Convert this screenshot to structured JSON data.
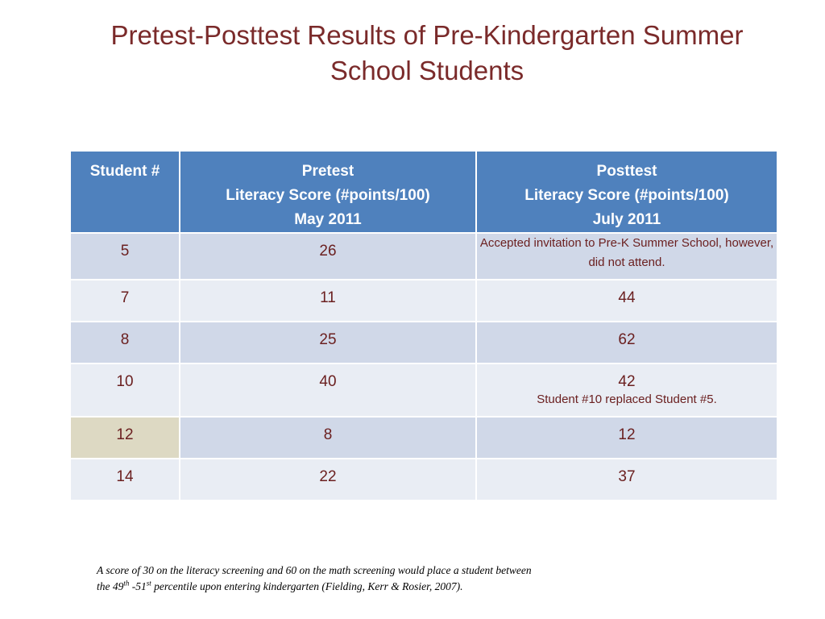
{
  "title": {
    "line1": "Pretest-Posttest Results of Pre-Kindergarten Summer",
    "line2": "School Students"
  },
  "table": {
    "headers": {
      "student": "Student #",
      "pretest": [
        "Pretest",
        "Literacy Score (#points/100)",
        "May 2011"
      ],
      "posttest": [
        "Posttest",
        "Literacy Score  (#points/100)",
        "July 2011"
      ]
    },
    "rows": [
      {
        "student": "5",
        "pretest": "26",
        "posttest": "",
        "posttest_note": "Accepted invitation to Pre-K Summer School, however, did not attend."
      },
      {
        "student": "7",
        "pretest": "11",
        "posttest": "44",
        "posttest_note": ""
      },
      {
        "student": "8",
        "pretest": "25",
        "posttest": "62",
        "posttest_note": ""
      },
      {
        "student": "10",
        "pretest": "40",
        "posttest": "42",
        "posttest_note": "Student #10 replaced Student #5."
      },
      {
        "student": "12",
        "pretest": "8",
        "posttest": "12",
        "posttest_note": ""
      },
      {
        "student": "14",
        "pretest": "22",
        "posttest": "37",
        "posttest_note": ""
      }
    ]
  },
  "footnote": {
    "line1": "A score of 30 on the literacy screening and 60 on the math screening would place a student between",
    "line2_a": "the 49",
    "line2_sup1": "th",
    "line2_b": " -51",
    "line2_sup2": "st",
    "line2_c": " percentile upon entering kindergarten (Fielding, Kerr & Rosier, 2007)."
  },
  "colors": {
    "title": "#7a2a2a",
    "header_bg": "#4f81bd",
    "row_odd": "#d0d8e8",
    "row_even": "#e9edf4",
    "highlight": "#ddd9c3"
  }
}
